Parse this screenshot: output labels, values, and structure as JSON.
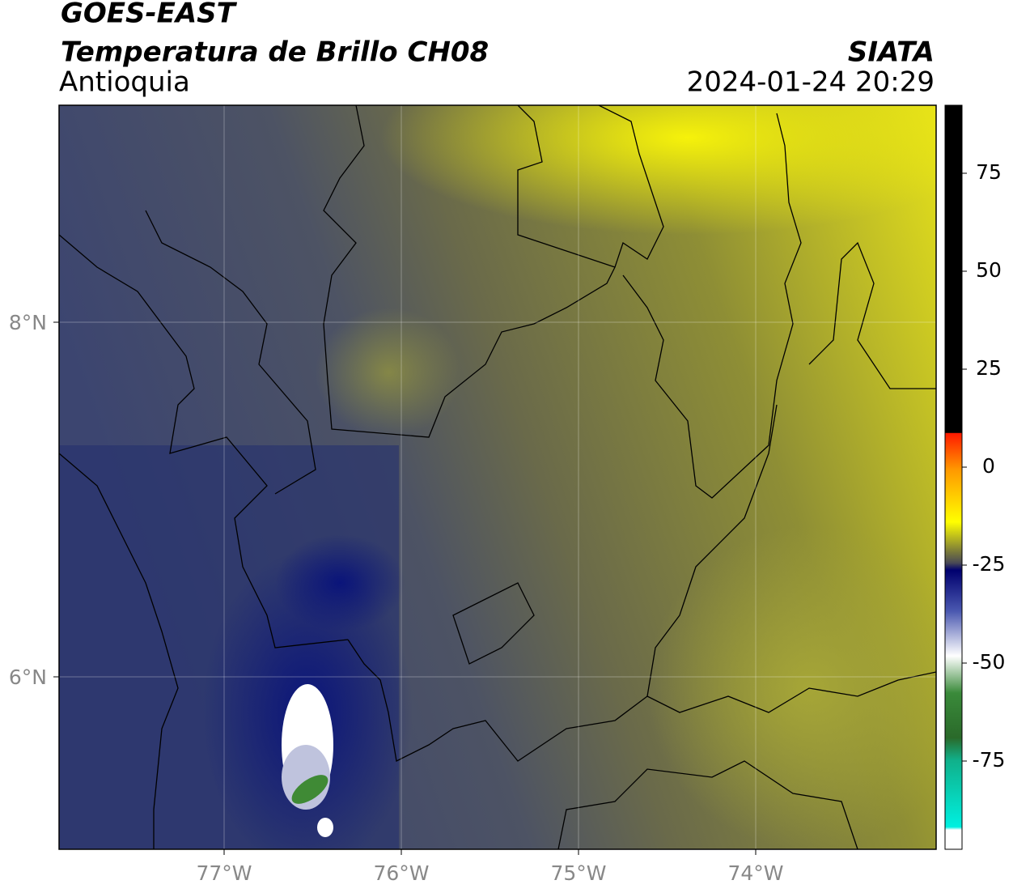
{
  "header": {
    "satellite": "GOES-EAST",
    "title": "Temperatura de Brillo CH08",
    "region": "Antioquia",
    "source": "SIATA",
    "datetime": "2024-01-24 20:29"
  },
  "map": {
    "lat_labels": [
      "8°N",
      "6°N"
    ],
    "lon_labels": [
      "77°W",
      "76°W",
      "75°W",
      "74°W"
    ]
  },
  "colorbar": {
    "ticks": [
      75,
      50,
      25,
      0,
      -25,
      -50,
      -75
    ]
  }
}
